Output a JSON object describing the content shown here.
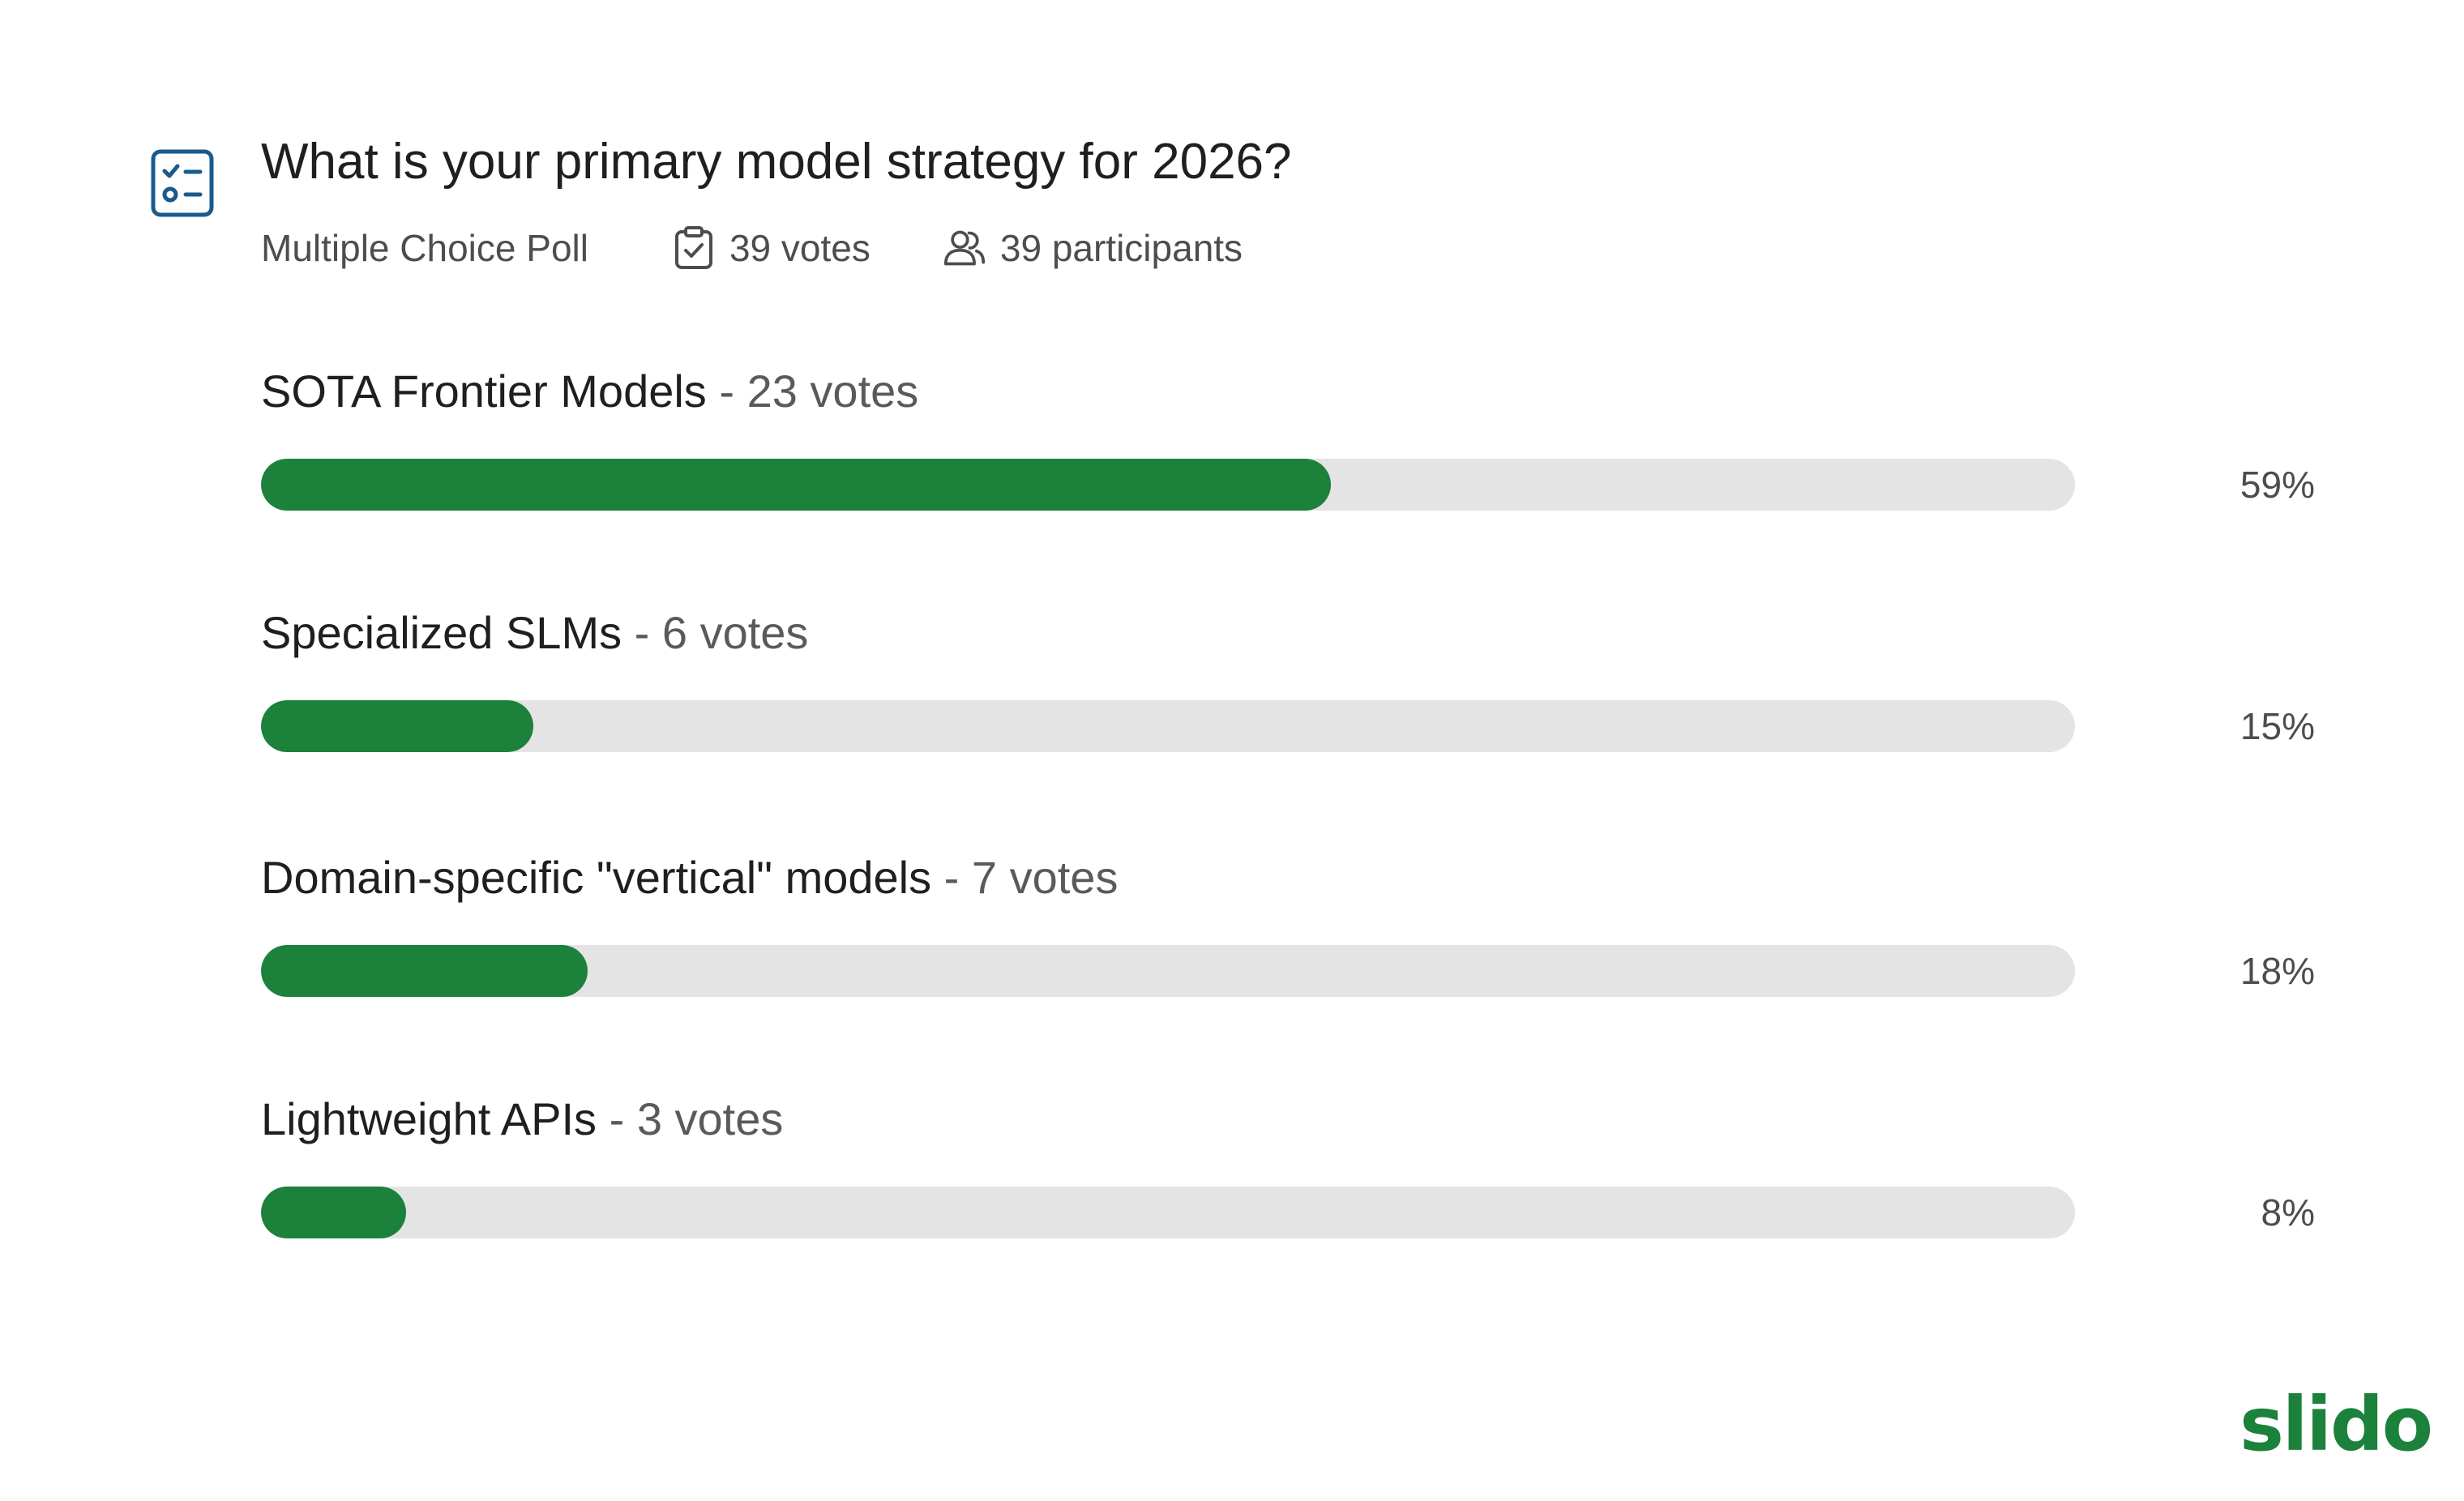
{
  "poll": {
    "question": "What is your primary model strategy for 2026?",
    "type": "Multiple Choice Poll",
    "votes_text": "39 votes",
    "participants_text": "39 participants",
    "icons": {
      "poll": "checklist-icon",
      "votes": "clipboard-check-icon",
      "participants": "users-icon"
    },
    "options": [
      {
        "label": "SOTA Frontier Models",
        "separator": " - ",
        "votes_text": "23 votes",
        "votes": 23,
        "percent_text": "59%",
        "percent": 59
      },
      {
        "label": "Specialized SLMs",
        "separator": " - ",
        "votes_text": "6 votes",
        "votes": 6,
        "percent_text": "15%",
        "percent": 15
      },
      {
        "label": "Domain-specific \"vertical\" models",
        "separator": " - ",
        "votes_text": "7 votes",
        "votes": 7,
        "percent_text": "18%",
        "percent": 18
      },
      {
        "label": "Lightweight APIs",
        "separator": " - ",
        "votes_text": "3 votes",
        "votes": 3,
        "percent_text": "8%",
        "percent": 8
      }
    ]
  },
  "brand": {
    "logo_text": "slido"
  },
  "colors": {
    "accent": "#1b813b",
    "track": "#e4e4e4",
    "icon_blue": "#1a5a8c",
    "text": "#1f1f1f",
    "muted": "#4d4d4d"
  }
}
